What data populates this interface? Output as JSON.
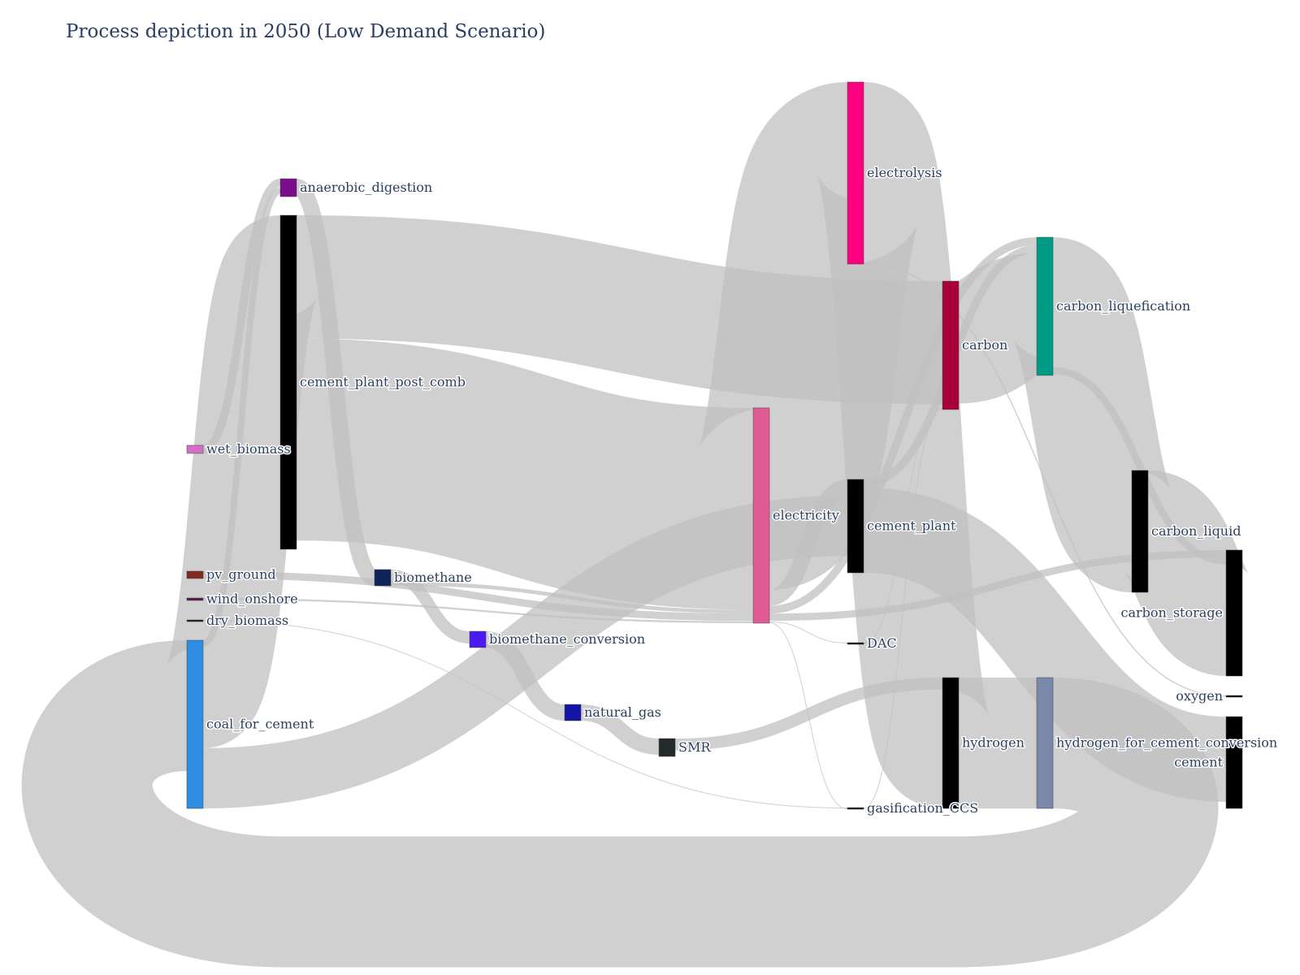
{
  "title": "Process depiction in 2050 (Low Demand Scenario)",
  "chart_data": {
    "type": "sankey",
    "title": "Process depiction in 2050 (Low Demand Scenario)",
    "link_color": "#c0c0c0",
    "nodes": [
      {
        "id": "wet_biomass",
        "label": "wet_biomass",
        "color": "#d36fc6",
        "value": 2
      },
      {
        "id": "pv_ground",
        "label": "pv_ground",
        "color": "#7d2a1f",
        "value": 2
      },
      {
        "id": "wind_onshore",
        "label": "wind_onshore",
        "color": "#5c1a4a",
        "value": 0.5
      },
      {
        "id": "dry_biomass",
        "label": "dry_biomass",
        "color": "#1a1a1a",
        "value": 0.4
      },
      {
        "id": "coal_for_cement",
        "label": "coal_for_cement",
        "color": "#2e8de0",
        "value": 42
      },
      {
        "id": "anaerobic_digestion",
        "label": "anaerobic_digestion",
        "color": "#7a0d8a",
        "value": 4
      },
      {
        "id": "cement_plant_post_comb",
        "label": "cement_plant_post_comb",
        "color": "#000000",
        "value": 84
      },
      {
        "id": "biomethane",
        "label": "biomethane",
        "color": "#0f2559",
        "value": 4
      },
      {
        "id": "biomethane_conversion",
        "label": "biomethane_conversion",
        "color": "#4a1af0",
        "value": 4
      },
      {
        "id": "natural_gas",
        "label": "natural_gas",
        "color": "#1414a8",
        "value": 4
      },
      {
        "id": "SMR",
        "label": "SMR",
        "color": "#222b2a",
        "value": 4
      },
      {
        "id": "electricity",
        "label": "electricity",
        "color": "#e05a94",
        "value": 54
      },
      {
        "id": "electrolysis",
        "label": "electrolysis",
        "color": "#ff0080",
        "value": 46
      },
      {
        "id": "cement_plant",
        "label": "cement_plant",
        "color": "#000000",
        "value": 23
      },
      {
        "id": "DAC",
        "label": "DAC",
        "color": "#000000",
        "value": 0.3
      },
      {
        "id": "gasification_CCS",
        "label": "gasification_CCS",
        "color": "#1a1a1a",
        "value": 0.4
      },
      {
        "id": "carbon",
        "label": "carbon",
        "color": "#a8003a",
        "value": 32
      },
      {
        "id": "hydrogen",
        "label": "hydrogen",
        "color": "#000000",
        "value": 33
      },
      {
        "id": "carbon_liquefication",
        "label": "carbon_liquefication",
        "color": "#009b85",
        "value": 35
      },
      {
        "id": "hydrogen_for_cement_conversion",
        "label": "hydrogen_for_cement_conversion",
        "color": "#7a88aa",
        "value": 33
      },
      {
        "id": "carbon_liquid",
        "label": "carbon_liquid",
        "color": "#000000",
        "value": 31
      },
      {
        "id": "carbon_storage",
        "label": "carbon_storage",
        "color": "#000000",
        "value": 32
      },
      {
        "id": "oxygen",
        "label": "oxygen",
        "color": "#000000",
        "value": 0.3
      },
      {
        "id": "cement",
        "label": "cement",
        "color": "#000000",
        "value": 23
      }
    ],
    "links": [
      {
        "source": "wet_biomass",
        "target": "anaerobic_digestion",
        "value": 2
      },
      {
        "source": "coal_for_cement",
        "target": "anaerobic_digestion",
        "value": 2
      },
      {
        "source": "anaerobic_digestion",
        "target": "biomethane",
        "value": 4
      },
      {
        "source": "coal_for_cement",
        "target": "cement_plant_post_comb",
        "value": 32
      },
      {
        "source": "cement_plant_post_comb",
        "target": "carbon",
        "value": 31
      },
      {
        "source": "cement_plant_post_comb",
        "target": "electricity",
        "value": 53
      },
      {
        "source": "biomethane",
        "target": "biomethane_conversion",
        "value": 3
      },
      {
        "source": "biomethane",
        "target": "electricity",
        "value": 1
      },
      {
        "source": "biomethane_conversion",
        "target": "natural_gas",
        "value": 3
      },
      {
        "source": "natural_gas",
        "target": "SMR",
        "value": 3
      },
      {
        "source": "SMR",
        "target": "hydrogen",
        "value": 3
      },
      {
        "source": "pv_ground",
        "target": "electricity",
        "value": 2
      },
      {
        "source": "wind_onshore",
        "target": "electricity",
        "value": 0.5
      },
      {
        "source": "dry_biomass",
        "target": "gasification_CCS",
        "value": 0.2
      },
      {
        "source": "electricity",
        "target": "electrolysis",
        "value": 46
      },
      {
        "source": "electricity",
        "target": "cement_plant",
        "value": 4
      },
      {
        "source": "electricity",
        "target": "carbon_liquefication",
        "value": 2
      },
      {
        "source": "electricity",
        "target": "carbon_storage",
        "value": 2
      },
      {
        "source": "electricity",
        "target": "DAC",
        "value": 0.2
      },
      {
        "source": "electricity",
        "target": "gasification_CCS",
        "value": 0.2
      },
      {
        "source": "coal_for_cement",
        "target": "cement_plant",
        "value": 19
      },
      {
        "source": "electrolysis",
        "target": "hydrogen",
        "value": 30
      },
      {
        "source": "electrolysis",
        "target": "oxygen",
        "value": 0.2
      },
      {
        "source": "cement_plant",
        "target": "carbon_liquefication",
        "value": 2
      },
      {
        "source": "cement_plant",
        "target": "cement",
        "value": 21
      },
      {
        "source": "DAC",
        "target": "carbon",
        "value": 0.2
      },
      {
        "source": "gasification_CCS",
        "target": "carbon",
        "value": 0.2
      },
      {
        "source": "carbon",
        "target": "carbon_liquefication",
        "value": 31
      },
      {
        "source": "carbon_liquefication",
        "target": "carbon_liquid",
        "value": 31
      },
      {
        "source": "carbon_liquefication",
        "target": "carbon_storage",
        "value": 2
      },
      {
        "source": "carbon_liquid",
        "target": "carbon_storage",
        "value": 31
      },
      {
        "source": "hydrogen",
        "target": "hydrogen_for_cement_conversion",
        "value": 33
      },
      {
        "source": "hydrogen_for_cement_conversion",
        "target": "coal_for_cement",
        "value": 33
      }
    ]
  }
}
